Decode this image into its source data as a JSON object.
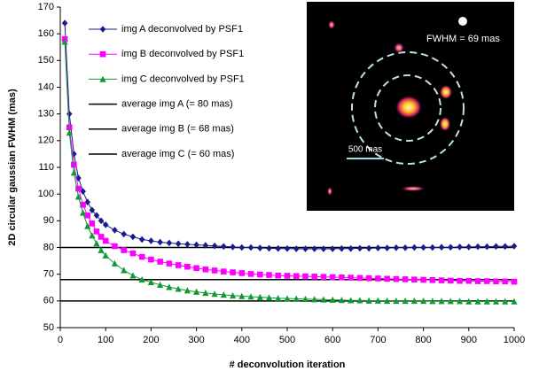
{
  "chart_data": {
    "type": "line",
    "y_label": "2D circular gaussian FWHM (mas)",
    "x_label": "# deconvolution iteration",
    "x": [
      10,
      20,
      30,
      40,
      50,
      60,
      70,
      80,
      90,
      100,
      120,
      140,
      160,
      180,
      200,
      220,
      240,
      260,
      280,
      300,
      320,
      340,
      360,
      380,
      400,
      420,
      440,
      460,
      480,
      500,
      520,
      540,
      560,
      580,
      600,
      620,
      640,
      660,
      680,
      700,
      720,
      740,
      760,
      780,
      800,
      820,
      840,
      860,
      880,
      900,
      920,
      940,
      960,
      980,
      1000
    ],
    "series": [
      {
        "name": "img A deconvolved by PSF1",
        "color": "#1a1a8c",
        "marker": "diamond",
        "values": [
          164,
          130,
          115,
          106,
          101,
          97,
          94,
          92,
          90,
          88.5,
          86.5,
          85,
          84,
          83,
          82.5,
          82,
          81.7,
          81.4,
          81.2,
          81,
          80.8,
          80.6,
          80.4,
          80.2,
          80,
          80,
          79.8,
          79.7,
          79.6,
          79.6,
          79.5,
          79.5,
          79.5,
          79.5,
          79.5,
          79.6,
          79.6,
          79.7,
          79.7,
          79.8,
          79.8,
          79.9,
          79.9,
          80,
          80,
          80,
          80.1,
          80.1,
          80.2,
          80.2,
          80.3,
          80.3,
          80.4,
          80.4,
          80.5
        ]
      },
      {
        "name": "img B deconvolved by PSF1",
        "color": "#ff00ff",
        "marker": "square",
        "values": [
          158,
          125,
          111,
          102,
          96,
          92,
          89,
          86,
          84,
          82.5,
          80.5,
          79,
          77.8,
          76.5,
          75.5,
          74.7,
          74,
          73.4,
          72.8,
          72.3,
          71.8,
          71.4,
          71,
          70.7,
          70.4,
          70.1,
          69.9,
          69.7,
          69.5,
          69.4,
          69.3,
          69.2,
          69.1,
          69,
          68.9,
          68.8,
          68.7,
          68.6,
          68.5,
          68.4,
          68.3,
          68.2,
          68.1,
          68,
          67.9,
          67.8,
          67.7,
          67.6,
          67.5,
          67.5,
          67.4,
          67.4,
          67.3,
          67.3,
          67.2
        ]
      },
      {
        "name": "img C deconvolved by PSF1",
        "color": "#119933",
        "marker": "triangle",
        "values": [
          157,
          123,
          108,
          99,
          93,
          88,
          84.5,
          81.5,
          79,
          77,
          74,
          71.5,
          69.5,
          68,
          67,
          66,
          65.2,
          64.5,
          63.9,
          63.4,
          63,
          62.6,
          62.3,
          62,
          61.8,
          61.6,
          61.4,
          61.2,
          61,
          60.9,
          60.8,
          60.7,
          60.6,
          60.5,
          60.4,
          60.3,
          60.2,
          60.2,
          60.1,
          60.1,
          60,
          60,
          60,
          60,
          60,
          59.9,
          59.9,
          59.9,
          59.9,
          59.8,
          59.8,
          59.8,
          59.8,
          59.8,
          59.8
        ]
      }
    ],
    "hlines": [
      {
        "name": "average img A (= 80 mas)",
        "value": 80,
        "color": "#000000"
      },
      {
        "name": "average img B (= 68 mas)",
        "value": 68,
        "color": "#000000"
      },
      {
        "name": "average img C (= 60 mas)",
        "value": 60,
        "color": "#000000"
      }
    ],
    "xlim": [
      0,
      1000
    ],
    "xticks": [
      0,
      100,
      200,
      300,
      400,
      500,
      600,
      700,
      800,
      900,
      1000
    ],
    "ylim": [
      50,
      170
    ],
    "yticks": [
      50,
      60,
      70,
      80,
      90,
      100,
      110,
      120,
      130,
      140,
      150,
      160,
      170
    ],
    "legend": "upper-left"
  },
  "inset": {
    "fwhm_label": "FWHM = 69 mas",
    "scale_label": "500 mas"
  }
}
